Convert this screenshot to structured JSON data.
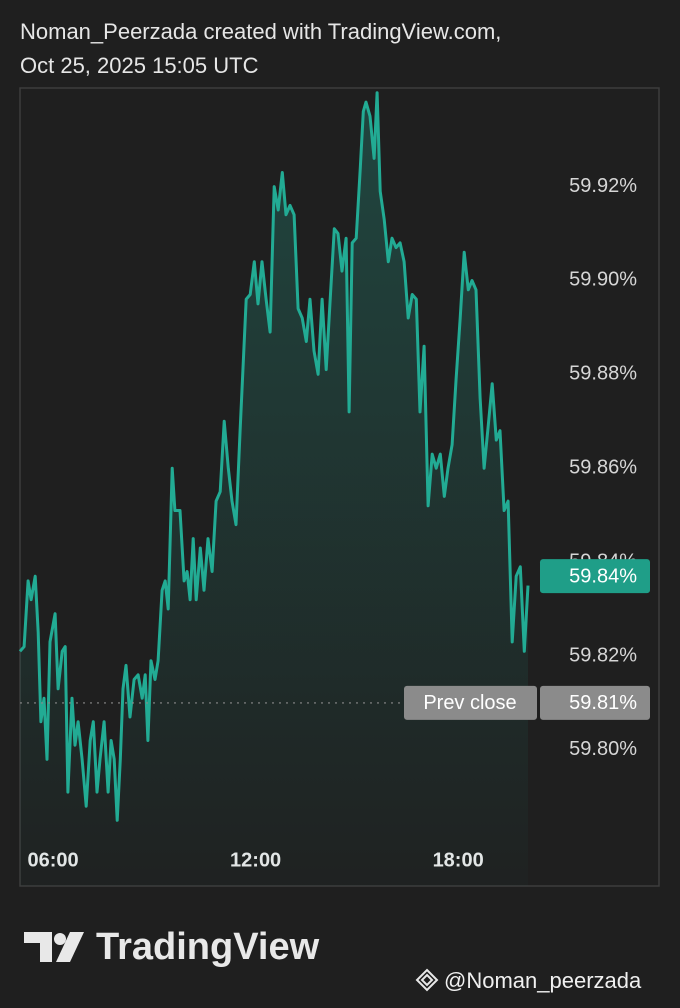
{
  "header": {
    "line1": "Noman_Peerzada created with TradingView.com,",
    "line2": "Oct 25, 2025 15:05 UTC"
  },
  "chart_data": {
    "type": "line",
    "color": "#22ab94",
    "x": [
      5.02,
      5.14,
      5.26,
      5.35,
      5.47,
      5.56,
      5.64,
      5.73,
      5.82,
      5.91,
      6.06,
      6.15,
      6.27,
      6.36,
      6.44,
      6.56,
      6.65,
      6.74,
      6.86,
      6.98,
      7.1,
      7.19,
      7.3,
      7.39,
      7.51,
      7.63,
      7.72,
      7.81,
      7.9,
      7.99,
      8.07,
      8.16,
      8.28,
      8.4,
      8.52,
      8.64,
      8.73,
      8.81,
      8.9,
      9.02,
      9.11,
      9.23,
      9.32,
      9.41,
      9.53,
      9.61,
      9.76,
      9.88,
      9.97,
      10.06,
      10.15,
      10.24,
      10.36,
      10.47,
      10.59,
      10.71,
      10.83,
      10.95,
      11.07,
      11.19,
      11.3,
      11.42,
      11.54,
      11.72,
      11.84,
      11.96,
      12.07,
      12.19,
      12.31,
      12.43,
      12.55,
      12.67,
      12.79,
      12.9,
      13.02,
      13.14,
      13.26,
      13.38,
      13.5,
      13.61,
      13.73,
      13.85,
      13.97,
      14.09,
      14.21,
      14.33,
      14.44,
      14.56,
      14.68,
      14.77,
      14.86,
      14.98,
      15.1,
      15.19,
      15.27,
      15.39,
      15.51,
      15.6,
      15.69,
      15.81,
      15.93,
      16.04,
      16.16,
      16.28,
      16.4,
      16.52,
      16.64,
      16.76,
      16.87,
      16.99,
      17.11,
      17.23,
      17.35,
      17.47,
      17.59,
      17.7,
      17.82,
      17.94,
      18.06,
      18.18,
      18.3,
      18.41,
      18.53,
      18.65,
      18.77,
      18.89,
      19.01,
      19.13,
      19.24,
      19.36,
      19.48,
      19.6,
      19.72,
      19.84,
      19.96,
      20.07
    ],
    "values": [
      59.821,
      59.822,
      59.836,
      59.832,
      59.837,
      59.825,
      59.806,
      59.811,
      59.798,
      59.823,
      59.829,
      59.813,
      59.821,
      59.822,
      59.791,
      59.811,
      59.801,
      59.806,
      59.798,
      59.788,
      59.802,
      59.806,
      59.791,
      59.798,
      59.806,
      59.791,
      59.802,
      59.798,
      59.785,
      59.798,
      59.813,
      59.818,
      59.807,
      59.815,
      59.816,
      59.811,
      59.816,
      59.802,
      59.819,
      59.815,
      59.819,
      59.834,
      59.836,
      59.83,
      59.86,
      59.851,
      59.851,
      59.836,
      59.838,
      59.832,
      59.845,
      59.832,
      59.843,
      59.834,
      59.845,
      59.838,
      59.853,
      59.855,
      59.87,
      59.86,
      59.853,
      59.848,
      59.868,
      59.896,
      59.897,
      59.904,
      59.895,
      59.904,
      59.896,
      59.889,
      59.92,
      59.915,
      59.923,
      59.914,
      59.916,
      59.914,
      59.894,
      59.892,
      59.887,
      59.896,
      59.885,
      59.88,
      59.896,
      59.881,
      59.896,
      59.911,
      59.91,
      59.902,
      59.909,
      59.872,
      59.908,
      59.909,
      59.924,
      59.936,
      59.938,
      59.935,
      59.926,
      59.94,
      59.919,
      59.913,
      59.904,
      59.909,
      59.907,
      59.908,
      59.904,
      59.892,
      59.897,
      59.896,
      59.872,
      59.886,
      59.852,
      59.863,
      59.86,
      59.863,
      59.854,
      59.86,
      59.865,
      59.879,
      59.892,
      59.906,
      59.898,
      59.9,
      59.898,
      59.875,
      59.86,
      59.869,
      59.878,
      59.866,
      59.868,
      59.851,
      59.853,
      59.823,
      59.837,
      59.839,
      59.821,
      59.835
    ],
    "xlim": [
      5.02,
      23.95
    ],
    "xticks": [
      {
        "value": 6,
        "label": "06:00"
      },
      {
        "value": 12,
        "label": "12:00"
      },
      {
        "value": 18,
        "label": "18:00"
      }
    ],
    "ylim": [
      59.771,
      59.941
    ],
    "yticks": [
      {
        "value": 59.8,
        "label": "59.80%"
      },
      {
        "value": 59.82,
        "label": "59.82%"
      },
      {
        "value": 59.84,
        "label": "59.84%"
      },
      {
        "value": 59.86,
        "label": "59.86%"
      },
      {
        "value": 59.88,
        "label": "59.88%"
      },
      {
        "value": 59.9,
        "label": "59.90%"
      },
      {
        "value": 59.92,
        "label": "59.92%"
      }
    ],
    "grid": false,
    "last_price": {
      "value": 59.84,
      "label": "59.84%"
    },
    "prev_close": {
      "title": "Prev close",
      "value": 59.81,
      "label": "59.81%"
    }
  },
  "footer": {
    "logo": "TradingView",
    "credit": "@Noman_peerzada"
  }
}
